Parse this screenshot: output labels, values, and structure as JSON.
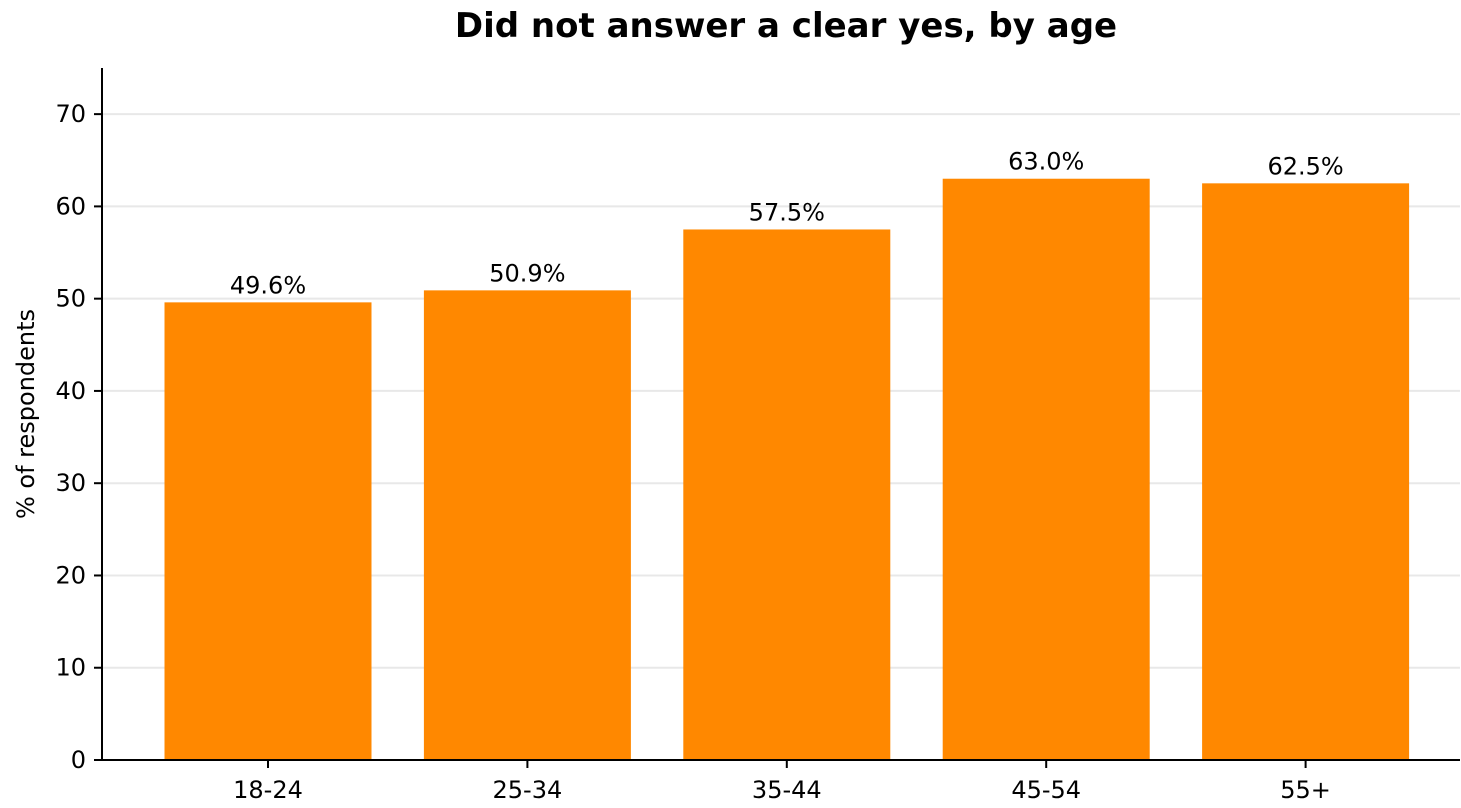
{
  "chart_data": {
    "type": "bar",
    "title": "Did not answer a clear yes, by age",
    "xlabel": "",
    "ylabel": "% of respondents",
    "categories": [
      "18-24",
      "25-34",
      "35-44",
      "45-54",
      "55+"
    ],
    "values": [
      49.6,
      50.9,
      57.5,
      63.0,
      62.5
    ],
    "data_labels": [
      "49.6%",
      "50.9%",
      "57.5%",
      "63.0%",
      "62.5%"
    ],
    "ylim": [
      0,
      75
    ],
    "yticks": [
      0,
      10,
      20,
      30,
      40,
      50,
      60,
      70
    ],
    "grid": "horizontal",
    "bar_color": "#FF8800",
    "grid_color": "#e8e8e8"
  }
}
